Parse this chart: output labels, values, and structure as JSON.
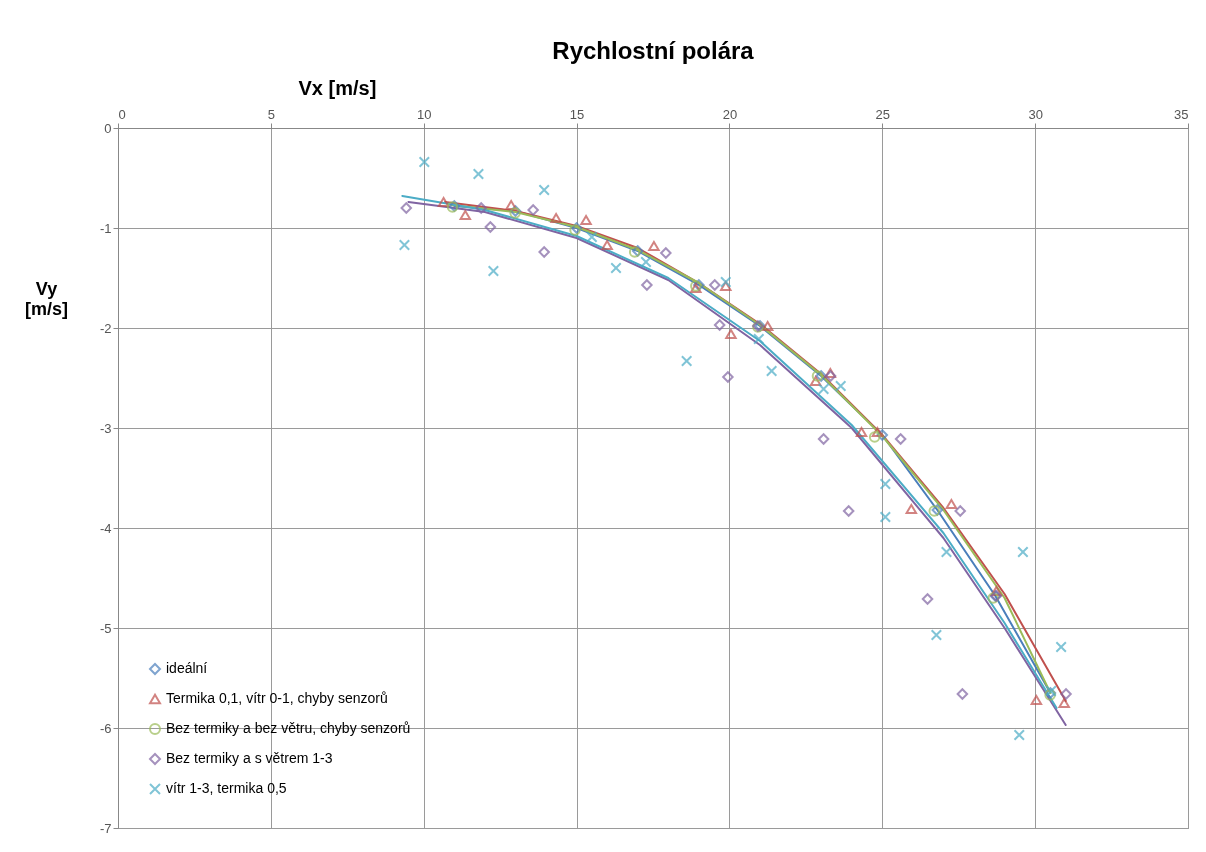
{
  "chart_data": {
    "type": "scatter",
    "title": "Rychlostní polára",
    "xlabel": "Vx [m/s]",
    "ylabel": "Vy [m/s]",
    "xlim": [
      0,
      35
    ],
    "xticks": [
      0,
      5,
      10,
      15,
      20,
      25,
      30,
      35
    ],
    "ylim": [
      -7,
      0
    ],
    "yticks": [
      -7,
      -6,
      -5,
      -4,
      -3,
      -2,
      -1,
      0
    ],
    "grid": true,
    "legend": "bottom left",
    "series": [
      {
        "name": "ideální",
        "type": "line",
        "marker": "diamond",
        "color": "#4a7ebb",
        "x": [
          11,
          13,
          15,
          17,
          19,
          21,
          23,
          25,
          26.8,
          28.7,
          30.5
        ],
        "values": [
          -0.78,
          -0.83,
          -1.0,
          -1.23,
          -1.57,
          -1.98,
          -2.48,
          -3.07,
          -3.82,
          -4.68,
          -5.65
        ]
      },
      {
        "name": "Termika 0,1, vítr 0-1, chyby senzorů",
        "type": "scatter",
        "marker": "triangle",
        "color": "#c0504d",
        "x": [
          10.65,
          11.36,
          12.86,
          14.33,
          15.31,
          16.0,
          17.53,
          18.9,
          19.88,
          20.05,
          21.25,
          22.82,
          23.3,
          24.32,
          24.84,
          25.95,
          27.26,
          28.73,
          30.04,
          30.95
        ],
        "values": [
          -0.74,
          -0.87,
          -0.77,
          -0.9,
          -0.92,
          -1.17,
          -1.18,
          -1.6,
          -1.58,
          -2.06,
          -1.98,
          -2.53,
          -2.45,
          -3.04,
          -3.04,
          -3.81,
          -3.76,
          -4.63,
          -5.72,
          -5.75
        ]
      },
      {
        "name": "Bez termiky a bez větru, chyby senzorů",
        "type": "scatter",
        "marker": "circle",
        "color": "#9bbb59",
        "x": [
          10.94,
          12.99,
          14.95,
          16.9,
          18.9,
          20.93,
          22.88,
          24.75,
          26.7,
          28.63,
          30.49
        ],
        "values": [
          -0.79,
          -0.85,
          -1.02,
          -1.24,
          -1.58,
          -1.99,
          -2.48,
          -3.09,
          -3.83,
          -4.7,
          -5.67
        ]
      },
      {
        "name": "Bez termiky a s větrem 1-3",
        "type": "scatter",
        "marker": "diamond",
        "color": "#8064a2",
        "x": [
          9.43,
          11.88,
          12.18,
          13.58,
          13.94,
          17.3,
          17.92,
          19.52,
          19.68,
          19.95,
          20.93,
          23.08,
          23.31,
          23.9,
          25.6,
          26.48,
          27.55,
          27.62,
          28.73,
          31.01
        ],
        "values": [
          -0.8,
          -0.8,
          -0.99,
          -0.82,
          -1.24,
          -1.57,
          -1.25,
          -1.57,
          -1.97,
          -2.49,
          -1.98,
          -3.11,
          -2.48,
          -3.83,
          -3.11,
          -4.71,
          -3.83,
          -5.66,
          -4.68,
          -5.66
        ]
      },
      {
        "name": "vítr 1-3, termika 0,5",
        "type": "scatter",
        "marker": "cross",
        "color": "#4bacc6",
        "x": [
          9.37,
          10.02,
          11.79,
          12.28,
          13.94,
          15.5,
          16.29,
          17.27,
          18.6,
          19.88,
          20.96,
          21.38,
          23.08,
          23.64,
          25.1,
          25.1,
          26.77,
          27.1,
          29.48,
          29.6,
          30.52,
          30.85
        ],
        "values": [
          -1.17,
          -0.34,
          -0.46,
          -1.43,
          -0.62,
          -1.09,
          -1.4,
          -1.34,
          -2.33,
          -1.54,
          -2.11,
          -2.43,
          -2.61,
          -2.58,
          -3.56,
          -3.89,
          -5.07,
          -4.24,
          -6.07,
          -4.24,
          -5.63,
          -5.19
        ]
      },
      {
        "type": "line",
        "color": "#c0504d",
        "x": [
          10.7,
          13,
          15,
          17,
          19,
          21,
          23,
          25,
          27,
          29,
          31
        ],
        "values": [
          -0.74,
          -0.83,
          -0.98,
          -1.2,
          -1.55,
          -1.96,
          -2.46,
          -3.07,
          -3.8,
          -4.66,
          -5.73
        ]
      },
      {
        "type": "line",
        "color": "#9bbb59",
        "x": [
          10.9,
          13,
          15,
          17,
          19,
          21,
          23,
          25,
          27,
          29,
          30.5
        ],
        "values": [
          -0.77,
          -0.84,
          -0.99,
          -1.22,
          -1.55,
          -1.97,
          -2.47,
          -3.08,
          -3.82,
          -4.7,
          -5.65
        ]
      },
      {
        "type": "line",
        "color": "#8064a2",
        "x": [
          9.5,
          12,
          15,
          18,
          21,
          24,
          27,
          29,
          31
        ],
        "values": [
          -0.74,
          -0.84,
          -1.1,
          -1.52,
          -2.17,
          -3.0,
          -4.1,
          -5.0,
          -5.97
        ]
      },
      {
        "type": "line",
        "color": "#4bacc6",
        "x": [
          9.3,
          12,
          15,
          18,
          21,
          24,
          27,
          29,
          30.7
        ],
        "values": [
          -0.68,
          -0.82,
          -1.08,
          -1.5,
          -2.13,
          -2.97,
          -4.05,
          -4.95,
          -5.8
        ]
      }
    ]
  }
}
